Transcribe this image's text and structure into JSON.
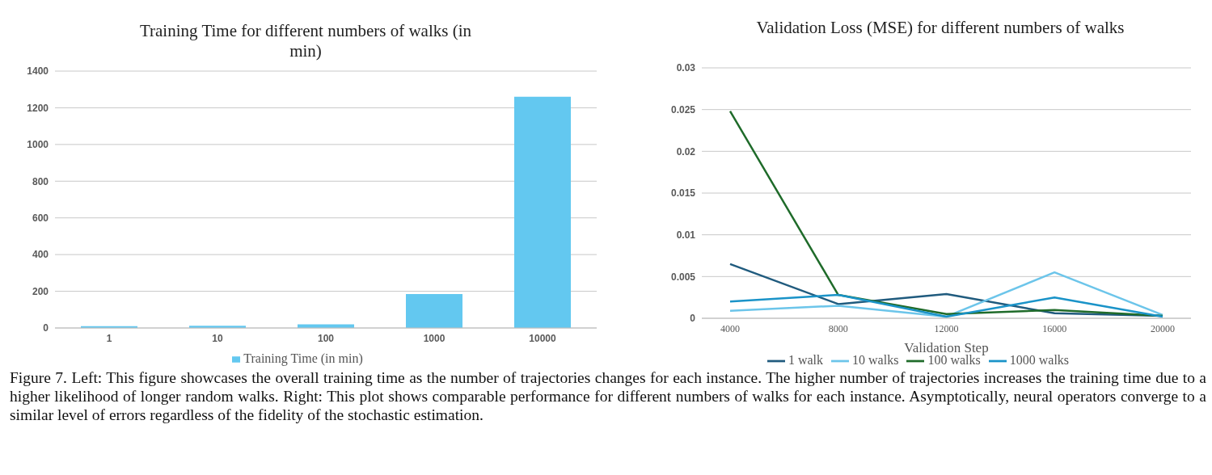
{
  "chart_data": [
    {
      "type": "bar",
      "title": "Training Time for different numbers of walks (in min)",
      "categories": [
        "1",
        "10",
        "100",
        "1000",
        "10000"
      ],
      "series": [
        {
          "name": "Training Time (in min)",
          "color": "#63c8f0",
          "values": [
            10,
            12,
            20,
            185,
            1260
          ]
        }
      ],
      "ylim": [
        0,
        1400
      ],
      "yticks": [
        0,
        200,
        400,
        600,
        800,
        1000,
        1200,
        1400
      ],
      "grid": "y",
      "legend": "bottom"
    },
    {
      "type": "line",
      "title": "Validation Loss (MSE) for different numbers of walks",
      "xlabel": "Validation Step",
      "categories": [
        "4000",
        "8000",
        "12000",
        "16000",
        "20000"
      ],
      "series": [
        {
          "name": "1 walk",
          "color": "#205b7e",
          "values": [
            0.0065,
            0.0017,
            0.0029,
            0.0006,
            0.0003
          ]
        },
        {
          "name": "10 walks",
          "color": "#6cc5ea",
          "values": [
            0.0009,
            0.0015,
            0.0002,
            0.0055,
            0.0004
          ]
        },
        {
          "name": "100 walks",
          "color": "#1f6b2a",
          "values": [
            0.0248,
            0.0028,
            0.0005,
            0.001,
            0.0003
          ]
        },
        {
          "name": "1000 walks",
          "color": "#1a93c8",
          "values": [
            0.002,
            0.0028,
            0.0002,
            0.0025,
            0.0002
          ]
        }
      ],
      "ylim": [
        0,
        0.03
      ],
      "yticks": [
        0,
        0.005,
        0.01,
        0.015,
        0.02,
        0.025,
        0.03
      ],
      "grid": "y",
      "legend": "bottom",
      "marker": "none",
      "annotations": [
        "Figure 7. Left: This figure showcases the overall training time as the number of trajectories changes for each instance. The higher number of trajectories increases the training time due to a higher likelihood of longer random walks. Right: This plot shows comparable performance for different numbers of walks for each instance. Asymptotically, neural operators converge to a similar level of errors regardless of the fidelity of the stochastic estimation."
      ]
    }
  ]
}
